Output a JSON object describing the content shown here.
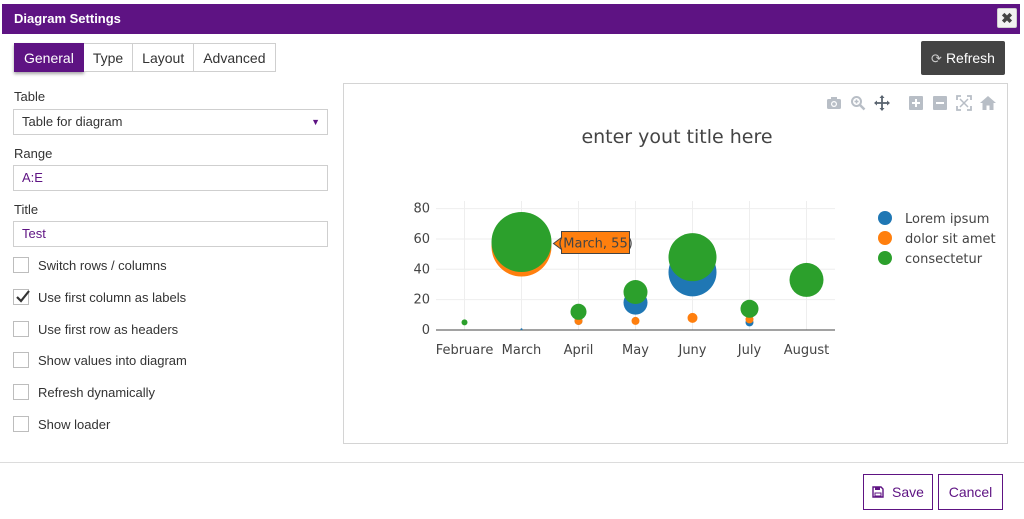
{
  "dialog": {
    "title": "Diagram Settings",
    "close_glyph": "✖"
  },
  "tabs": [
    {
      "label": "General",
      "active": true
    },
    {
      "label": "Type",
      "active": false
    },
    {
      "label": "Layout",
      "active": false
    },
    {
      "label": "Advanced",
      "active": false
    }
  ],
  "toolbar": {
    "refresh_label": "Refresh",
    "refresh_icon": "refresh-icon"
  },
  "form": {
    "table_label": "Table",
    "table_value": "Table for diagram",
    "range_label": "Range",
    "range_value": "A:E",
    "title_label": "Title",
    "title_value": "Test",
    "checkboxes": [
      {
        "label": "Switch rows / columns",
        "checked": false
      },
      {
        "label": "Use first column as labels",
        "checked": true
      },
      {
        "label": "Use first row as headers",
        "checked": false
      },
      {
        "label": "Show values into diagram",
        "checked": false
      },
      {
        "label": "Refresh dynamically",
        "checked": false
      },
      {
        "label": "Show loader",
        "checked": false
      }
    ]
  },
  "chart_toolbar_icons": [
    "camera-icon",
    "zoom-icon",
    "pan-icon",
    "zoom-in-icon",
    "zoom-out-icon",
    "autoscale-icon",
    "reset-axes-icon"
  ],
  "chart_data": {
    "type": "scatter",
    "title": "enter yout title here",
    "categories": [
      "Februare",
      "March",
      "April",
      "May",
      "Juny",
      "July",
      "August"
    ],
    "ylim": [
      0,
      85
    ],
    "yticks": [
      0,
      20,
      40,
      60,
      80
    ],
    "grid": true,
    "legend_position": "top-right",
    "series": [
      {
        "name": "Lorem ipsum",
        "color": "#1f77b4",
        "values": [
          null,
          0.5,
          6,
          18,
          38,
          5,
          null
        ],
        "sizes": [
          null,
          1,
          4,
          12,
          24,
          4,
          null
        ]
      },
      {
        "name": "dolor sit amet",
        "color": "#ff7f0e",
        "values": [
          null,
          55,
          6,
          6,
          8,
          7,
          null
        ],
        "sizes": [
          null,
          30,
          4,
          4,
          5,
          4,
          null
        ]
      },
      {
        "name": "consectetur",
        "color": "#2ca02c",
        "values": [
          5,
          58,
          12,
          25,
          48,
          14,
          33
        ],
        "sizes": [
          3,
          30,
          8,
          12,
          24,
          9,
          17
        ]
      }
    ],
    "tooltip": {
      "category": "March",
      "value": 55,
      "text": "(March, 55)",
      "color": "#ff7f0e"
    }
  },
  "footer": {
    "save_label": "Save",
    "cancel_label": "Cancel",
    "save_icon": "floppy-icon"
  },
  "colors": {
    "accent": "#5e1383",
    "toolbar_button": "#444444"
  }
}
